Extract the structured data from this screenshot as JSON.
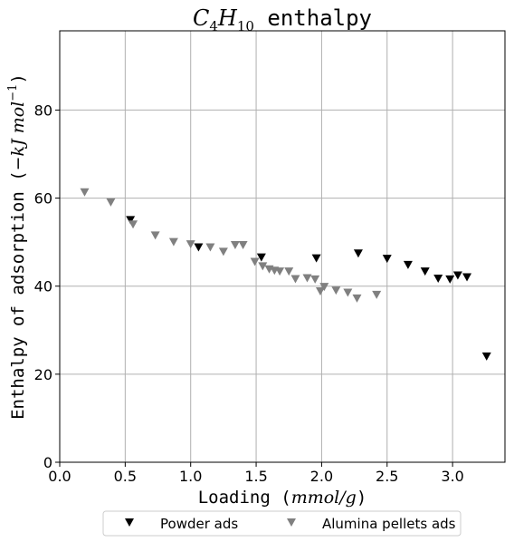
{
  "chart_data": {
    "type": "scatter",
    "title": "C4H10 enthalpy",
    "title_parts": {
      "base_c": "C",
      "sub_4": "4",
      "base_h": "H",
      "sub_10": "10",
      "rest": " enthalpy"
    },
    "xlabel": "Loading (mmol/g)",
    "xlabel_parts": {
      "base": "Loading (",
      "unit": "mmol/g",
      "close": ")"
    },
    "ylabel": "Enthalpy of adsorption (−kJ mol−1)",
    "ylabel_parts": {
      "base": "Enthalpy of adsorption (",
      "unit": "−kJ mol",
      "exp": "−1",
      "close": ")"
    },
    "xlim": [
      0,
      3.4
    ],
    "ylim": [
      0,
      98
    ],
    "xticks": [
      "0.0",
      "0.5",
      "1.0",
      "1.5",
      "2.0",
      "2.5",
      "3.0"
    ],
    "yticks": [
      "0",
      "20",
      "40",
      "60",
      "80"
    ],
    "grid": true,
    "legend_position": "bottom-outside",
    "series": [
      {
        "name": "Powder  ads",
        "color": "#000000",
        "marker": "triangle-down",
        "x": [
          0.54,
          1.06,
          1.54,
          1.96,
          2.28,
          2.5,
          2.66,
          2.79,
          2.89,
          2.98,
          3.04,
          3.11,
          3.26
        ],
        "y": [
          55,
          48.8,
          46.5,
          46.3,
          47.4,
          46.2,
          44.8,
          43.3,
          41.7,
          41.5,
          42.4,
          42.0,
          24.0
        ]
      },
      {
        "name": "Alumina pellets ads",
        "color": "#808080",
        "marker": "triangle-down",
        "x": [
          0.19,
          0.39,
          0.56,
          0.73,
          0.87,
          1.0,
          1.15,
          1.25,
          1.34,
          1.4,
          1.49,
          1.55,
          1.6,
          1.64,
          1.68,
          1.75,
          1.8,
          1.89,
          1.95,
          1.99,
          2.02,
          2.11,
          2.2,
          2.27,
          2.42
        ],
        "y": [
          61.3,
          59.0,
          54.0,
          51.5,
          50.0,
          49.5,
          48.8,
          47.8,
          49.3,
          49.3,
          45.5,
          44.5,
          43.8,
          43.5,
          43.3,
          43.3,
          41.6,
          41.8,
          41.5,
          38.8,
          39.8,
          39.0,
          38.5,
          37.2,
          38.0
        ]
      }
    ]
  }
}
